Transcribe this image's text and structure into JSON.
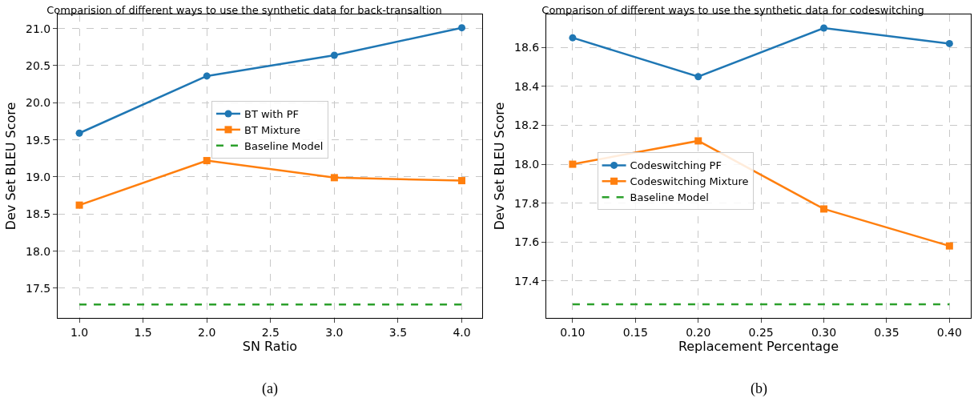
{
  "chart_data": [
    {
      "type": "line",
      "title": "Comparision of different ways to use the synthetic data for back-transaltion",
      "xlabel": "SN Ratio",
      "ylabel": "Dev Set BLEU Score",
      "x": [
        1.0,
        2.0,
        3.0,
        4.0
      ],
      "series": [
        {
          "name": "BT with PF",
          "color": "#1f77b4",
          "values": [
            19.59,
            20.36,
            20.64,
            21.01
          ],
          "marker": "circle",
          "line_style": "solid"
        },
        {
          "name": "BT Mixture",
          "color": "#ff7f0e",
          "values": [
            18.62,
            19.22,
            18.99,
            18.95
          ],
          "marker": "square",
          "line_style": "solid"
        },
        {
          "name": "Baseline Model",
          "color": "#2ca02c",
          "values": [
            17.28,
            17.28,
            17.28,
            17.28
          ],
          "marker": "none",
          "line_style": "dashed"
        }
      ],
      "xlim": [
        0.83,
        4.16
      ],
      "xticks": [
        {
          "value": 1,
          "label": "1.0"
        },
        {
          "value": 1.5,
          "label": "1.5"
        },
        {
          "value": 2,
          "label": "2.0"
        },
        {
          "value": 2.5,
          "label": "2.5"
        },
        {
          "value": 3,
          "label": "3.0"
        },
        {
          "value": 3.5,
          "label": "3.5"
        },
        {
          "value": 4,
          "label": "4.0"
        }
      ],
      "ylim": [
        17.1,
        21.19
      ],
      "yticks": [
        17.5,
        {
          "value": 18,
          "label": "18.0"
        },
        18.5,
        {
          "value": 19,
          "label": "19.0"
        },
        19.5,
        {
          "value": 20,
          "label": "20.0"
        },
        20.5,
        {
          "value": 21,
          "label": "21.0"
        }
      ],
      "grid": true,
      "legend": "center",
      "annotations": [
        "(a)"
      ]
    },
    {
      "type": "line",
      "title": "Comparison of different ways to use the synthetic data for codeswitching",
      "xlabel": "Replacement Percentage",
      "ylabel": "Dev Set BLEU Score",
      "x": [
        0.1,
        0.2,
        0.3,
        0.4
      ],
      "series": [
        {
          "name": "Codeswitching PF",
          "color": "#1f77b4",
          "values": [
            18.65,
            18.45,
            18.7,
            18.62
          ],
          "marker": "circle",
          "line_style": "solid"
        },
        {
          "name": "Codeswitching Mixture",
          "color": "#ff7f0e",
          "values": [
            18.0,
            18.12,
            17.77,
            17.58
          ],
          "marker": "square",
          "line_style": "solid"
        },
        {
          "name": "Baseline Model",
          "color": "#2ca02c",
          "values": [
            17.28,
            17.28,
            17.28,
            17.28
          ],
          "marker": "none",
          "line_style": "dashed"
        }
      ],
      "xlim": [
        0.079,
        0.417
      ],
      "xticks": [
        {
          "value": 0.1,
          "label": "0.10"
        },
        {
          "value": 0.15,
          "label": "0.15"
        },
        {
          "value": 0.2,
          "label": "0.20"
        },
        {
          "value": 0.25,
          "label": "0.25"
        },
        {
          "value": 0.3,
          "label": "0.30"
        },
        {
          "value": 0.35,
          "label": "0.35"
        },
        {
          "value": 0.4,
          "label": "0.40"
        }
      ],
      "ylim": [
        17.21,
        18.77
      ],
      "yticks": [
        {
          "value": 17.4,
          "label": "17.4"
        },
        {
          "value": 17.6,
          "label": "17.6"
        },
        {
          "value": 17.8,
          "label": "17.8"
        },
        {
          "value": 18.0,
          "label": "18.0"
        },
        {
          "value": 18.2,
          "label": "18.2"
        },
        {
          "value": 18.4,
          "label": "18.4"
        },
        {
          "value": 18.6,
          "label": "18.6"
        }
      ],
      "grid": true,
      "legend": "center left",
      "annotations": [
        "(b)"
      ]
    }
  ]
}
